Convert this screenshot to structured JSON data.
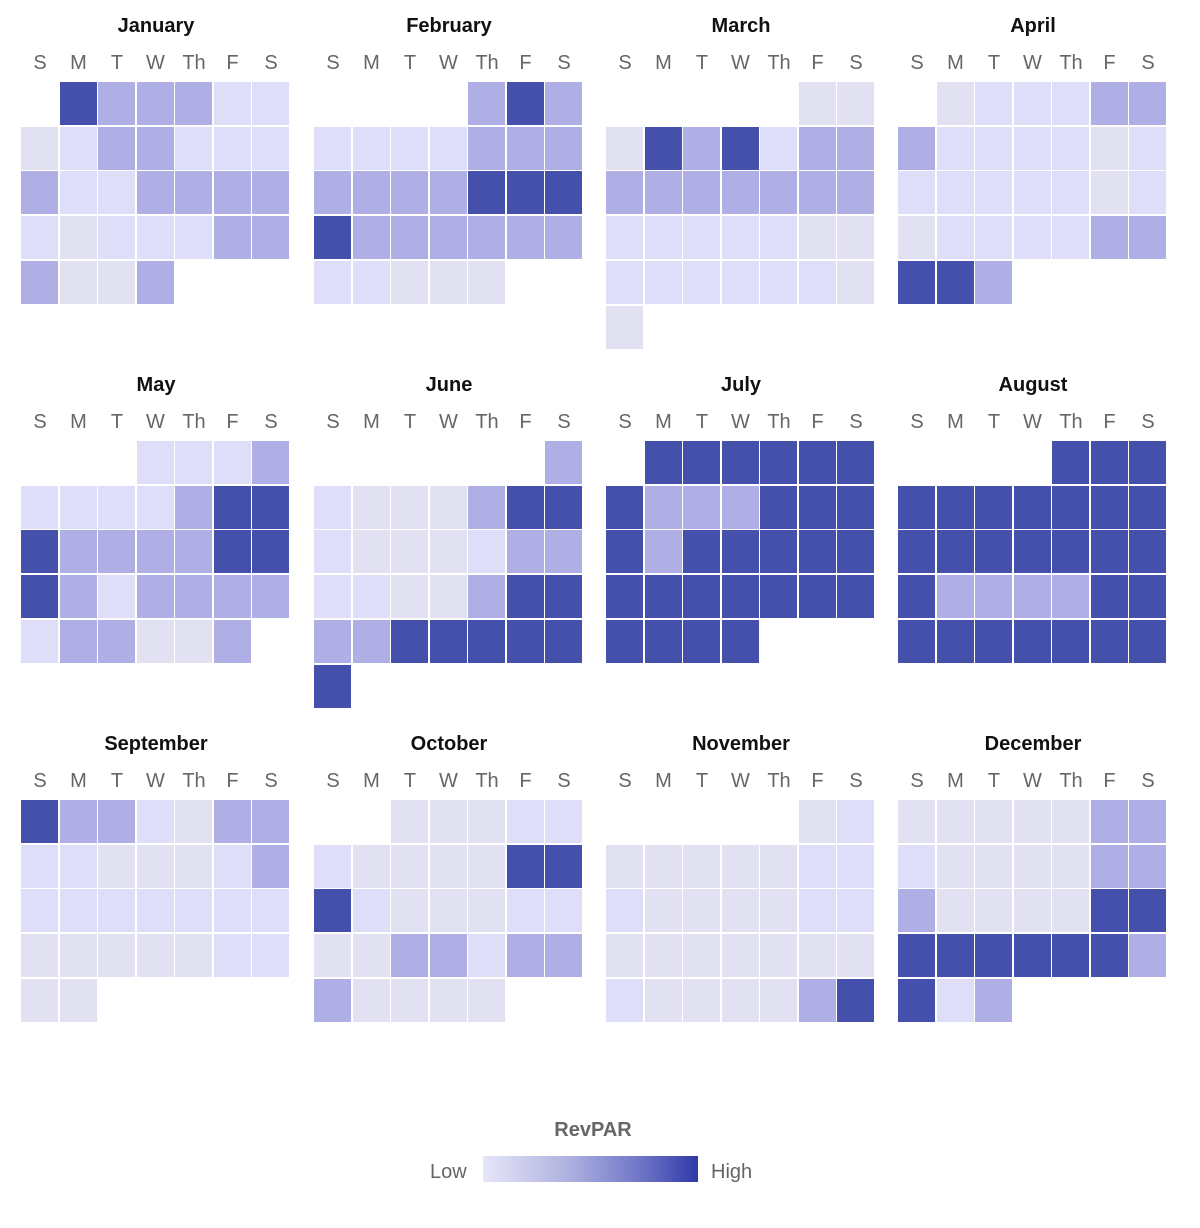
{
  "chart_data": {
    "type": "heatmap",
    "subtype": "calendar",
    "legend": {
      "title": "RevPAR",
      "low_label": "Low",
      "high_label": "High",
      "placement": "bottom-center"
    },
    "weekday_labels": [
      "S",
      "M",
      "T",
      "W",
      "Th",
      "F",
      "S"
    ],
    "value_scale": "relative intensity 0 (lowest) to 3 (highest)",
    "colors": [
      "#e1e1f2",
      "#dedef9",
      "#afafe6",
      "#4450ab"
    ],
    "months": [
      {
        "name": "January",
        "weeks": [
          [
            null,
            3,
            2,
            2,
            2,
            1,
            1
          ],
          [
            0,
            1,
            2,
            2,
            1,
            1,
            1
          ],
          [
            2,
            1,
            1,
            2,
            2,
            2,
            2
          ],
          [
            1,
            0,
            1,
            1,
            1,
            2,
            2
          ],
          [
            2,
            0,
            0,
            2,
            null,
            null,
            null
          ]
        ]
      },
      {
        "name": "February",
        "weeks": [
          [
            null,
            null,
            null,
            null,
            2,
            3,
            2
          ],
          [
            1,
            1,
            1,
            1,
            2,
            2,
            2
          ],
          [
            2,
            2,
            2,
            2,
            3,
            3,
            3
          ],
          [
            3,
            2,
            2,
            2,
            2,
            2,
            2
          ],
          [
            1,
            1,
            0,
            0,
            0,
            null,
            null
          ]
        ]
      },
      {
        "name": "March",
        "weeks": [
          [
            null,
            null,
            null,
            null,
            null,
            0,
            0
          ],
          [
            0,
            3,
            2,
            3,
            1,
            2,
            2
          ],
          [
            2,
            2,
            2,
            2,
            2,
            2,
            2
          ],
          [
            1,
            1,
            1,
            1,
            1,
            0,
            0
          ],
          [
            1,
            1,
            1,
            1,
            1,
            1,
            0
          ],
          [
            0,
            null,
            null,
            null,
            null,
            null,
            null
          ]
        ]
      },
      {
        "name": "April",
        "weeks": [
          [
            null,
            0,
            1,
            1,
            1,
            2,
            2
          ],
          [
            2,
            1,
            1,
            1,
            1,
            0,
            1
          ],
          [
            1,
            1,
            1,
            1,
            1,
            0,
            1
          ],
          [
            0,
            1,
            1,
            1,
            1,
            2,
            2
          ],
          [
            3,
            3,
            2,
            null,
            null,
            null,
            null
          ]
        ]
      },
      {
        "name": "May",
        "weeks": [
          [
            null,
            null,
            null,
            1,
            1,
            1,
            2
          ],
          [
            1,
            1,
            1,
            1,
            2,
            3,
            3
          ],
          [
            3,
            2,
            2,
            2,
            2,
            3,
            3
          ],
          [
            3,
            2,
            1,
            2,
            2,
            2,
            2
          ],
          [
            1,
            2,
            2,
            0,
            0,
            2,
            null
          ]
        ]
      },
      {
        "name": "June",
        "weeks": [
          [
            null,
            null,
            null,
            null,
            null,
            null,
            2
          ],
          [
            1,
            0,
            0,
            0,
            2,
            3,
            3
          ],
          [
            1,
            0,
            0,
            0,
            1,
            2,
            2
          ],
          [
            1,
            1,
            0,
            0,
            2,
            3,
            3
          ],
          [
            2,
            2,
            3,
            3,
            3,
            3,
            3
          ],
          [
            3,
            null,
            null,
            null,
            null,
            null,
            null
          ]
        ]
      },
      {
        "name": "July",
        "weeks": [
          [
            null,
            3,
            3,
            3,
            3,
            3,
            3
          ],
          [
            3,
            2,
            2,
            2,
            3,
            3,
            3
          ],
          [
            3,
            2,
            3,
            3,
            3,
            3,
            3
          ],
          [
            3,
            3,
            3,
            3,
            3,
            3,
            3
          ],
          [
            3,
            3,
            3,
            3,
            null,
            null,
            null
          ]
        ]
      },
      {
        "name": "August",
        "weeks": [
          [
            null,
            null,
            null,
            null,
            3,
            3,
            3
          ],
          [
            3,
            3,
            3,
            3,
            3,
            3,
            3
          ],
          [
            3,
            3,
            3,
            3,
            3,
            3,
            3
          ],
          [
            3,
            2,
            2,
            2,
            2,
            3,
            3
          ],
          [
            3,
            3,
            3,
            3,
            3,
            3,
            3
          ]
        ]
      },
      {
        "name": "September",
        "weeks": [
          [
            3,
            2,
            2,
            1,
            0,
            2,
            2
          ],
          [
            1,
            1,
            0,
            0,
            0,
            1,
            2
          ],
          [
            1,
            1,
            1,
            1,
            1,
            1,
            1
          ],
          [
            0,
            0,
            0,
            0,
            0,
            1,
            1
          ],
          [
            0,
            0,
            null,
            null,
            null,
            null,
            null
          ]
        ]
      },
      {
        "name": "October",
        "weeks": [
          [
            null,
            null,
            0,
            0,
            0,
            1,
            1
          ],
          [
            1,
            0,
            0,
            0,
            0,
            3,
            3
          ],
          [
            3,
            1,
            0,
            0,
            0,
            1,
            1
          ],
          [
            0,
            0,
            2,
            2,
            1,
            2,
            2
          ],
          [
            2,
            0,
            0,
            0,
            0,
            null,
            null
          ]
        ]
      },
      {
        "name": "November",
        "weeks": [
          [
            null,
            null,
            null,
            null,
            null,
            0,
            1
          ],
          [
            0,
            0,
            0,
            0,
            0,
            1,
            1
          ],
          [
            1,
            0,
            0,
            0,
            0,
            1,
            1
          ],
          [
            0,
            0,
            0,
            0,
            0,
            0,
            0
          ],
          [
            1,
            0,
            0,
            0,
            0,
            2,
            3
          ]
        ]
      },
      {
        "name": "December",
        "weeks": [
          [
            0,
            0,
            0,
            0,
            0,
            2,
            2
          ],
          [
            1,
            0,
            0,
            0,
            0,
            2,
            2
          ],
          [
            2,
            0,
            0,
            0,
            0,
            3,
            3
          ],
          [
            3,
            3,
            3,
            3,
            3,
            3,
            2
          ],
          [
            3,
            1,
            2,
            null,
            null,
            null,
            null
          ]
        ]
      }
    ]
  }
}
